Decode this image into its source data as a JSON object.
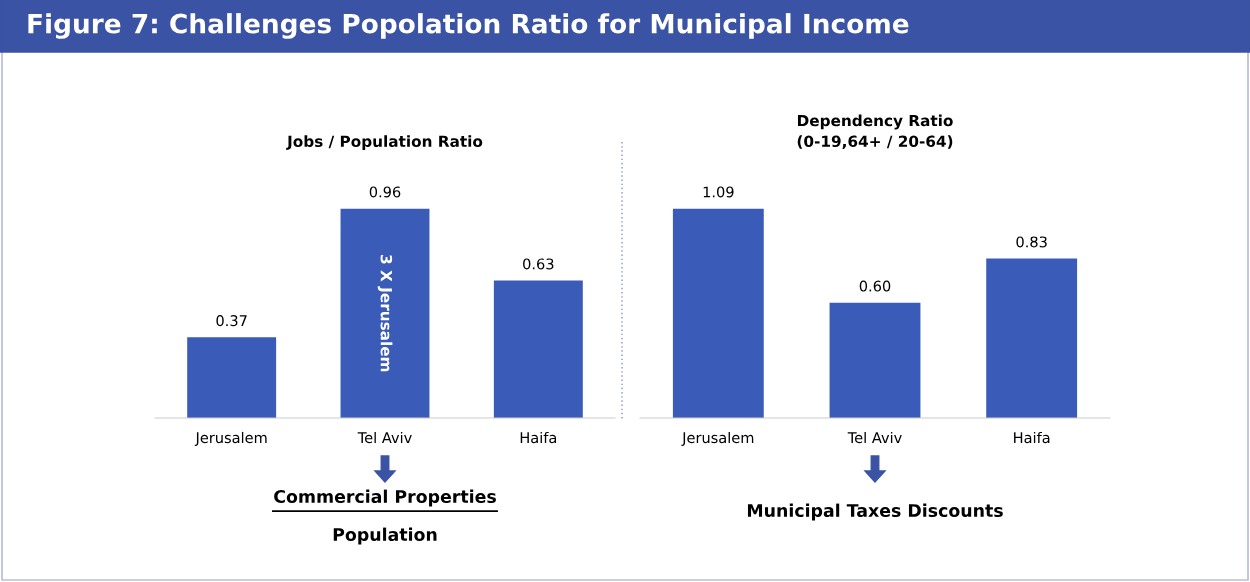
{
  "chart_data": [
    {
      "type": "other",
      "title": "Figure 7: Challenges Popolation Ratio for Municipal Income"
    },
    {
      "type": "bar",
      "title": "Jobs / Population Ratio",
      "categories": [
        "Jerusalem",
        "Tel Aviv",
        "Haifa"
      ],
      "values": [
        0.37,
        0.96,
        0.63
      ],
      "color": "#3a5bb8",
      "data_labels": true,
      "annotations": [
        "3 X Jerusalem",
        "Commercial Properties",
        "Population"
      ]
    },
    {
      "type": "bar",
      "title": "Dependency Ratio\n(0-19,64+ / 20-64)",
      "categories": [
        "Jerusalem",
        "Tel Aviv",
        "Haifa"
      ],
      "values": [
        1.09,
        0.6,
        0.83
      ],
      "value_labels": [
        "1.09",
        "0.60",
        "0.83"
      ],
      "color": "#3a5bb8",
      "annotations": [
        "Municipal Taxes Discounts"
      ]
    }
  ]
}
